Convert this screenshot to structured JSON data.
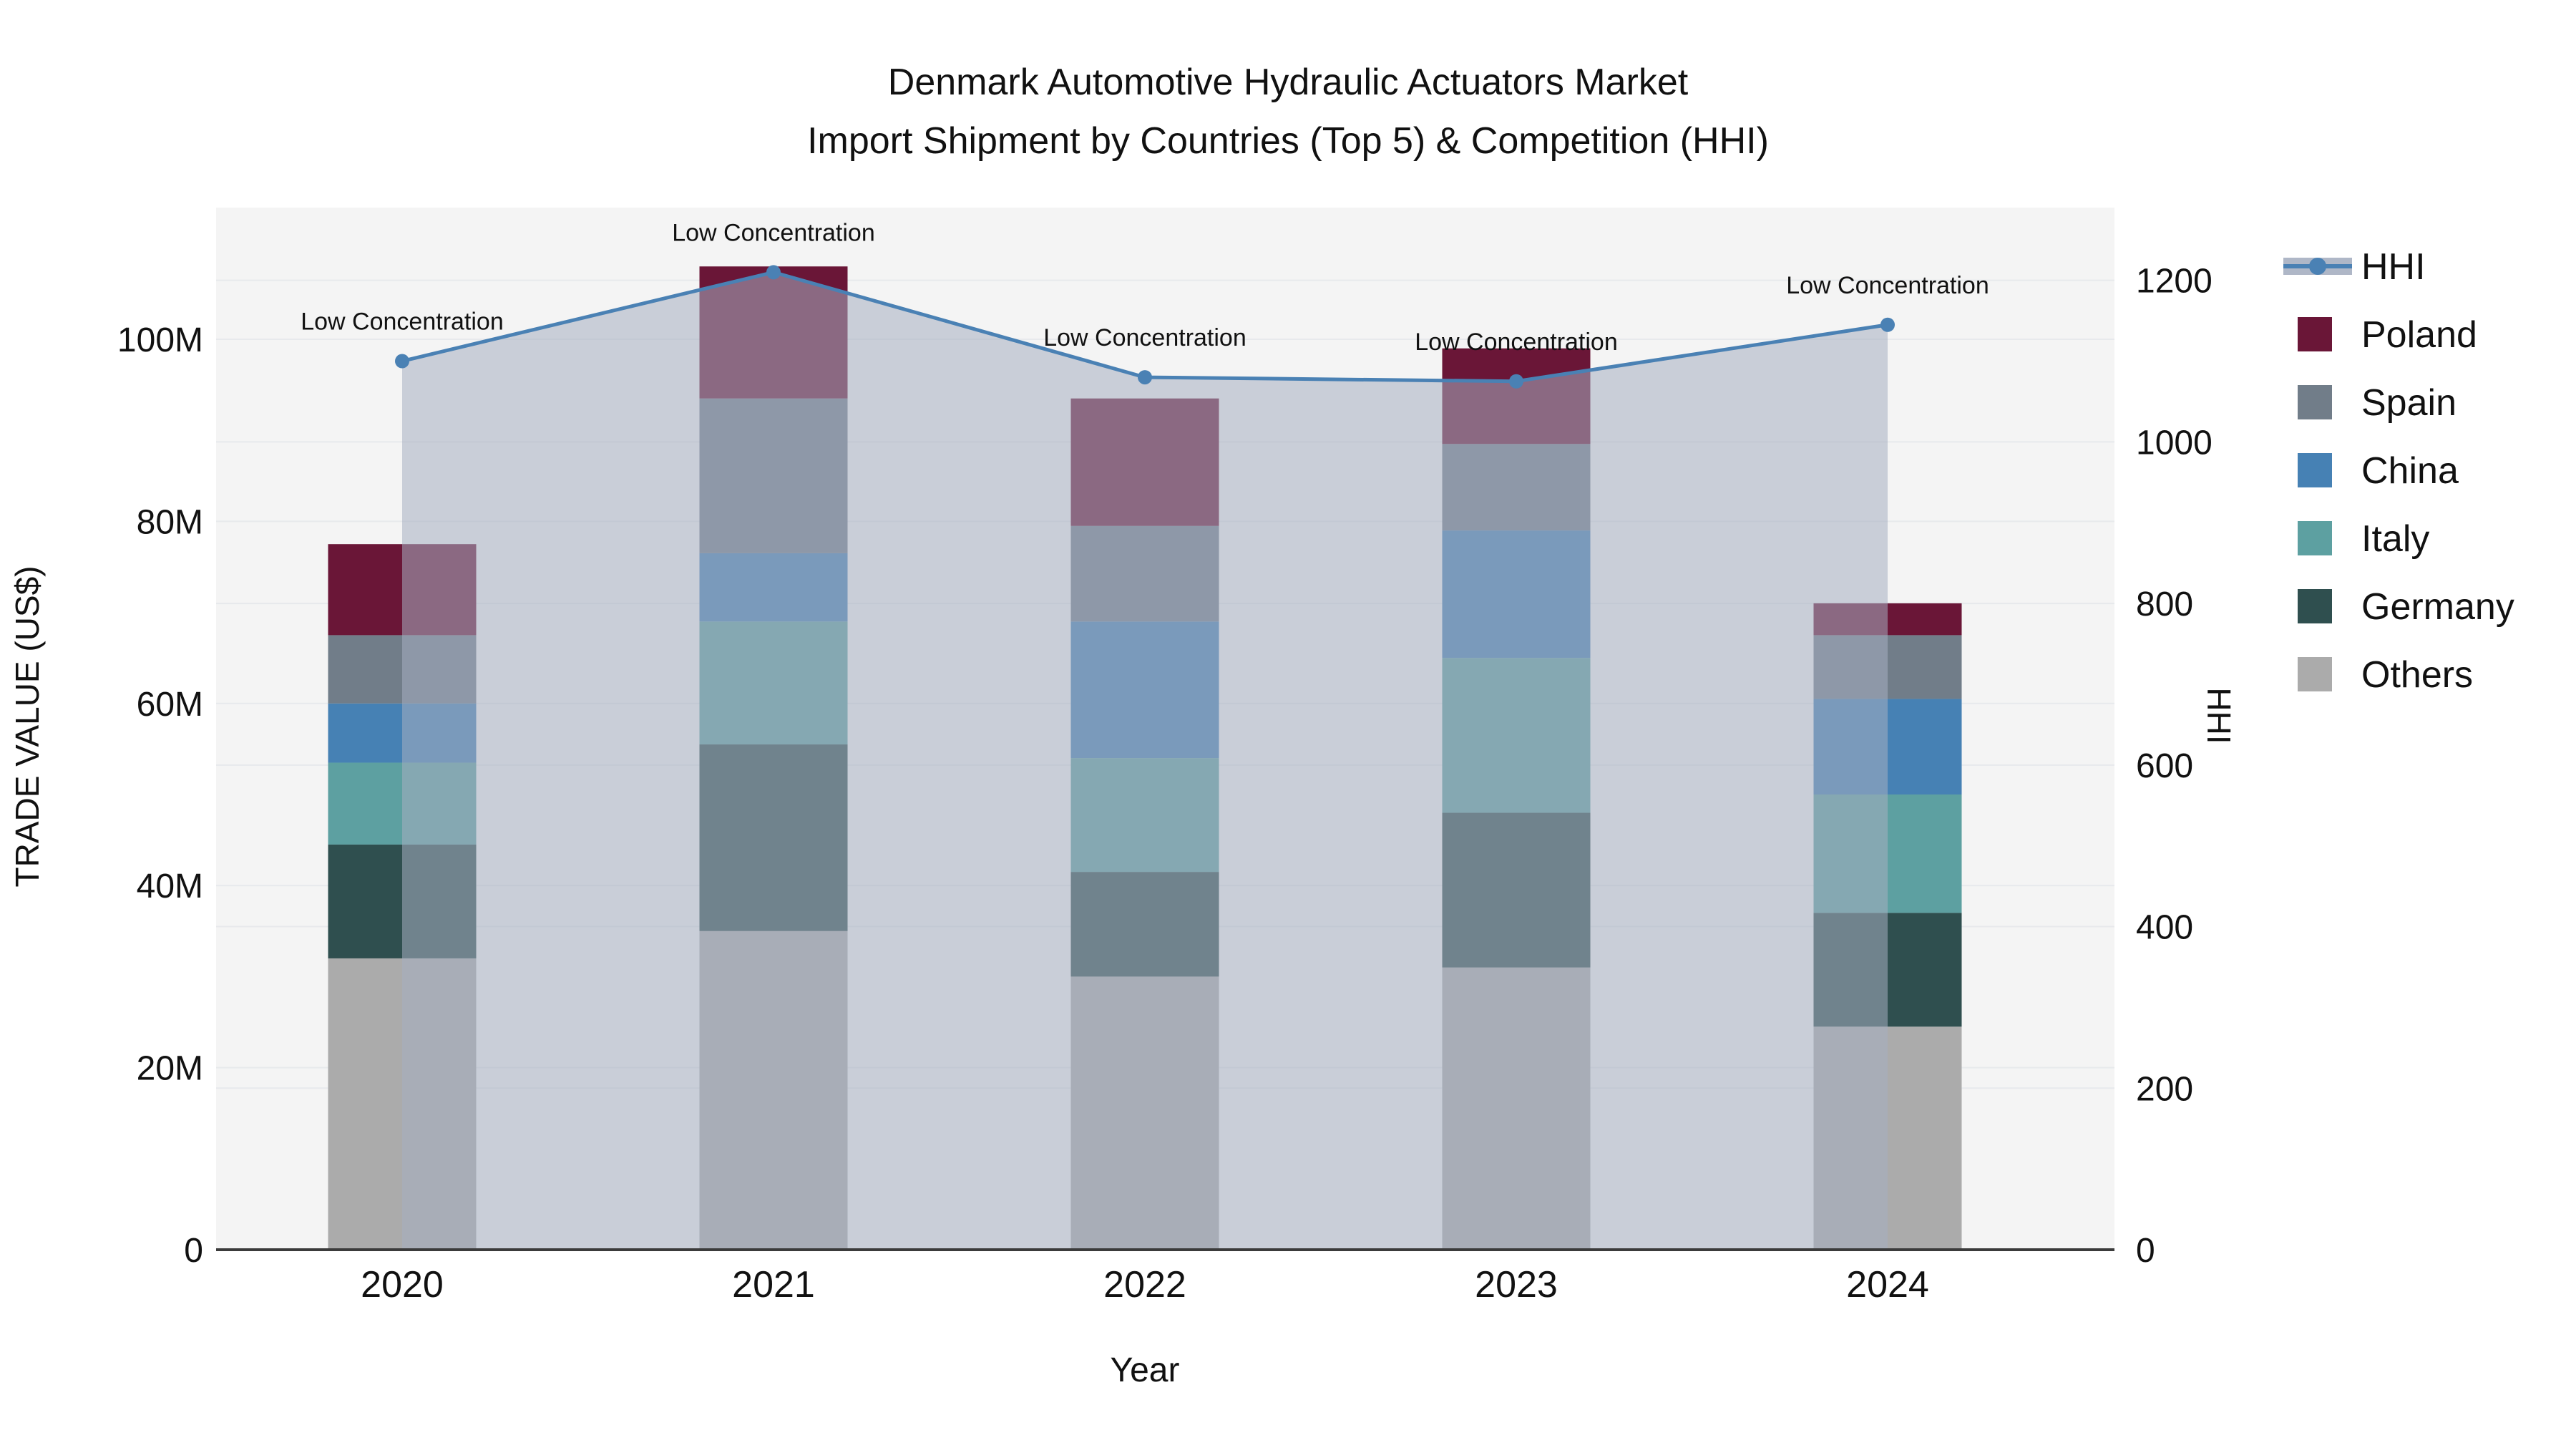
{
  "title": {
    "line1": "Denmark Automotive Hydraulic Actuators Market",
    "line2": "Import Shipment by Countries (Top 5) & Competition (HHI)"
  },
  "axes": {
    "left": {
      "title": "TRADE VALUE (US$)",
      "tick_labels": [
        "0",
        "20M",
        "40M",
        "60M",
        "80M",
        "100M"
      ],
      "tick_values": [
        0,
        20,
        40,
        60,
        80,
        100
      ]
    },
    "right": {
      "title": "HHI",
      "tick_labels": [
        "0",
        "200",
        "400",
        "600",
        "800",
        "1000",
        "1200"
      ],
      "tick_values": [
        0,
        200,
        400,
        600,
        800,
        1000,
        1200
      ]
    },
    "x": {
      "title": "Year",
      "categories": [
        "2020",
        "2021",
        "2022",
        "2023",
        "2024"
      ]
    }
  },
  "legend": {
    "items": [
      {
        "label": "HHI",
        "type": "line",
        "color": "#4a81b4"
      },
      {
        "label": "Poland",
        "type": "square",
        "color": "#6a1637"
      },
      {
        "label": "Spain",
        "type": "square",
        "color": "#717d89"
      },
      {
        "label": "China",
        "type": "square",
        "color": "#4681b4"
      },
      {
        "label": "Italy",
        "type": "square",
        "color": "#5da0a1"
      },
      {
        "label": "Germany",
        "type": "square",
        "color": "#2f4f4f"
      },
      {
        "label": "Others",
        "type": "square",
        "color": "#ababab"
      }
    ]
  },
  "annotation_text": "Low Concentration",
  "colors": {
    "plot_background": "#f4f4f4",
    "gridline": "#e7e9ec",
    "axis_line": "#3b3b3b",
    "hhi_line": "#4a81b4",
    "hhi_area_fill": "rgba(166,175,193,0.55)",
    "annotation_text": "#1a1a1a"
  },
  "chart_data": {
    "type": "combo (stacked bar + line on secondary axis)",
    "title": "Denmark Automotive Hydraulic Actuators Market — Import Shipment by Countries (Top 5) & Competition (HHI)",
    "categories": [
      "2020",
      "2021",
      "2022",
      "2023",
      "2024"
    ],
    "bar_unit": "M US$",
    "stack_order_bottom_to_top": [
      "Others",
      "Germany",
      "Italy",
      "China",
      "Spain",
      "Poland"
    ],
    "series": [
      {
        "name": "Others",
        "color": "#ababab",
        "values": [
          32,
          35,
          30,
          31,
          24.5
        ]
      },
      {
        "name": "Germany",
        "color": "#2f4f4f",
        "values": [
          12.5,
          20.5,
          11.5,
          17,
          12.5
        ]
      },
      {
        "name": "Italy",
        "color": "#5da0a1",
        "values": [
          9,
          13.5,
          12.5,
          17,
          13
        ]
      },
      {
        "name": "China",
        "color": "#4681b4",
        "values": [
          6.5,
          7.5,
          15,
          14,
          10.5
        ]
      },
      {
        "name": "Spain",
        "color": "#717d89",
        "values": [
          7.5,
          17,
          10.5,
          9.5,
          7
        ]
      },
      {
        "name": "Poland",
        "color": "#6a1637",
        "values": [
          10,
          14.5,
          14,
          10.5,
          3.5
        ]
      }
    ],
    "bar_totals": [
      77.5,
      108,
      93.5,
      99,
      71
    ],
    "line_series": {
      "name": "HHI",
      "axis": "right",
      "color": "#4a81b4",
      "values": [
        1100,
        1210,
        1080,
        1075,
        1145
      ],
      "point_annotations": [
        "Low Concentration",
        "Low Concentration",
        "Low Concentration",
        "Low Concentration",
        "Low Concentration"
      ],
      "area_fill": "rgba(166,175,193,0.55)"
    },
    "xlabel": "Year",
    "ylabel_left": "TRADE VALUE (US$)",
    "ylabel_right": "HHI",
    "ylim_left": [
      0,
      114
    ],
    "ylim_right": [
      0,
      1200
    ],
    "grid": true,
    "legend_position": "right"
  }
}
